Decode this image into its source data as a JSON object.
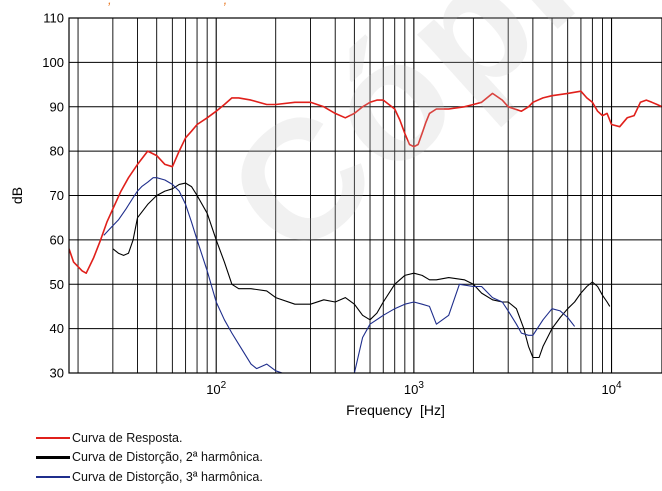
{
  "watermark": "Cópia não",
  "top_strip": "     ,                               ,",
  "chart_data": {
    "type": "line",
    "xscale": "log",
    "xlim": [
      18,
      18000
    ],
    "ylim": [
      30,
      110
    ],
    "xlabel": "Frequency  [Hz]",
    "ylabel": "dB",
    "grid": true,
    "yticks": [
      30,
      40,
      50,
      60,
      70,
      80,
      90,
      100,
      110
    ],
    "xticks": [
      {
        "value": 100,
        "base": "10",
        "exp": "2"
      },
      {
        "value": 1000,
        "base": "10",
        "exp": "3"
      },
      {
        "value": 10000,
        "base": "10",
        "exp": "4"
      }
    ],
    "legend_position": "bottom-left",
    "series": [
      {
        "name": "Curva de Resposta.",
        "color": "#e0201b",
        "x": [
          18,
          19,
          21,
          22,
          24,
          26,
          28,
          30,
          33,
          36,
          40,
          45,
          50,
          55,
          60,
          65,
          70,
          75,
          80,
          90,
          100,
          110,
          120,
          130,
          150,
          180,
          200,
          250,
          300,
          350,
          400,
          450,
          500,
          550,
          600,
          650,
          700,
          800,
          850,
          900,
          950,
          1000,
          1050,
          1100,
          1150,
          1200,
          1300,
          1500,
          1800,
          2000,
          2200,
          2500,
          2800,
          3000,
          3500,
          3800,
          4000,
          4500,
          5000,
          6000,
          7000,
          7500,
          8000,
          8500,
          9000,
          9500,
          10000,
          11000,
          12000,
          13000,
          14000,
          15000,
          16000,
          17000,
          18000
        ],
        "values": [
          58,
          55,
          53,
          52.5,
          56,
          60,
          64,
          67,
          71,
          74,
          77,
          80,
          79,
          77,
          76.5,
          80,
          83,
          84.5,
          86,
          87.5,
          89,
          90.5,
          92,
          92,
          91.5,
          90.5,
          90.5,
          91,
          91,
          90,
          88.5,
          87.5,
          88.5,
          90,
          91,
          91.5,
          91.5,
          89.5,
          87,
          84,
          81.5,
          81,
          81.5,
          84,
          86.5,
          88.5,
          89.5,
          89.5,
          90,
          90.5,
          91,
          93,
          91.5,
          90,
          89,
          90,
          91,
          92,
          92.5,
          93,
          93.5,
          92,
          91,
          89,
          88,
          88.5,
          86,
          85.5,
          87.5,
          88,
          91,
          91.5,
          91,
          90.5,
          90
        ]
      },
      {
        "name": "Curva de Distorção, 2ª harmônica.",
        "color": "#000000",
        "x": [
          30,
          32,
          34,
          36,
          38,
          40,
          45,
          50,
          55,
          60,
          65,
          70,
          75,
          80,
          90,
          100,
          110,
          120,
          130,
          150,
          180,
          200,
          250,
          300,
          350,
          400,
          450,
          500,
          550,
          600,
          650,
          700,
          800,
          900,
          1000,
          1100,
          1200,
          1300,
          1500,
          1800,
          2000,
          2200,
          2500,
          2800,
          3000,
          3300,
          3600,
          3800,
          4000,
          4300,
          4500,
          5000,
          5500,
          6000,
          6500,
          7000,
          7500,
          8000,
          8500,
          9000,
          9500,
          9800
        ],
        "values": [
          58,
          57,
          56.5,
          57,
          60,
          65,
          68,
          70,
          71,
          71.5,
          72.5,
          72.8,
          72,
          70,
          66,
          60,
          55,
          50,
          49,
          49,
          48.5,
          47,
          45.5,
          45.5,
          46.5,
          46,
          47,
          45.5,
          43,
          42,
          43.5,
          46,
          50,
          52,
          52.5,
          52,
          51,
          51,
          51.5,
          51,
          50,
          48,
          46.5,
          46,
          46,
          44.5,
          40,
          36,
          33.5,
          33.5,
          36,
          40,
          42.5,
          44.5,
          46,
          48,
          49.5,
          50.5,
          49.5,
          47.5,
          46,
          45
        ]
      },
      {
        "name": "Curva de Distorção, 3ª harmônica.",
        "color": "#1f2e8c",
        "x": [
          27,
          29,
          32,
          35,
          38,
          40,
          42,
          45,
          48,
          50,
          55,
          60,
          65,
          70,
          75,
          80,
          90,
          100,
          110,
          120,
          130,
          150,
          160,
          180,
          200,
          250,
          280,
          300,
          350,
          400,
          450,
          500,
          550,
          600,
          700,
          800,
          900,
          1000,
          1100,
          1200,
          1300,
          1500,
          1700,
          2000,
          2200,
          2500,
          2800,
          3000,
          3300,
          3500,
          3800,
          4000,
          4500,
          5000,
          5500,
          6000,
          6500
        ],
        "values": [
          61,
          62.5,
          64.5,
          67,
          69.5,
          71,
          72,
          73,
          74,
          74,
          73.5,
          72.5,
          71,
          68,
          64,
          60,
          53,
          46,
          42,
          39,
          36.5,
          32,
          31,
          32,
          30.5,
          29,
          29,
          29,
          29,
          29,
          29,
          30,
          38,
          41,
          43,
          44.5,
          45.5,
          46,
          45.5,
          45,
          41,
          43,
          50,
          49.5,
          49.5,
          47,
          46,
          44,
          41,
          39,
          38.5,
          38.5,
          42,
          44.5,
          44,
          42.5,
          40.5
        ]
      }
    ]
  }
}
